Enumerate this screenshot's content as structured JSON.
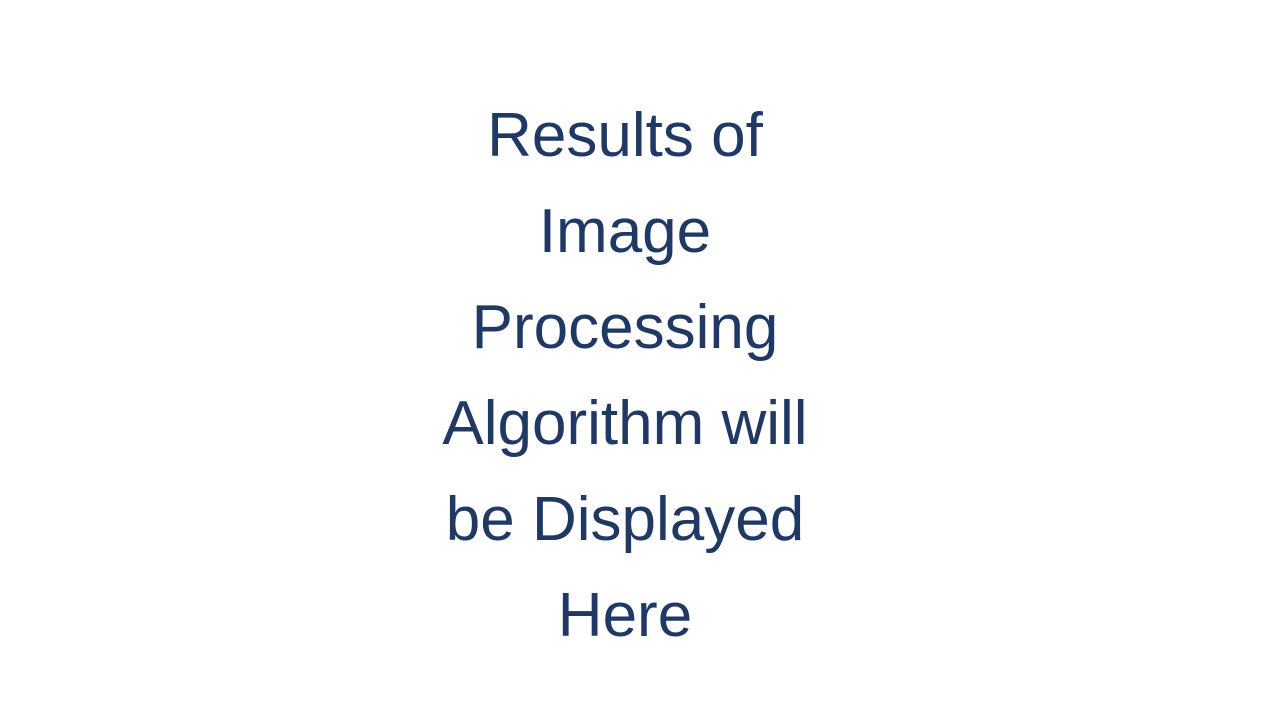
{
  "message": {
    "lines": [
      "Results of",
      "Image",
      "Processing",
      "Algorithm will",
      "be Displayed",
      "Here"
    ]
  },
  "colors": {
    "background": "#ffffff",
    "text": "#203864"
  }
}
